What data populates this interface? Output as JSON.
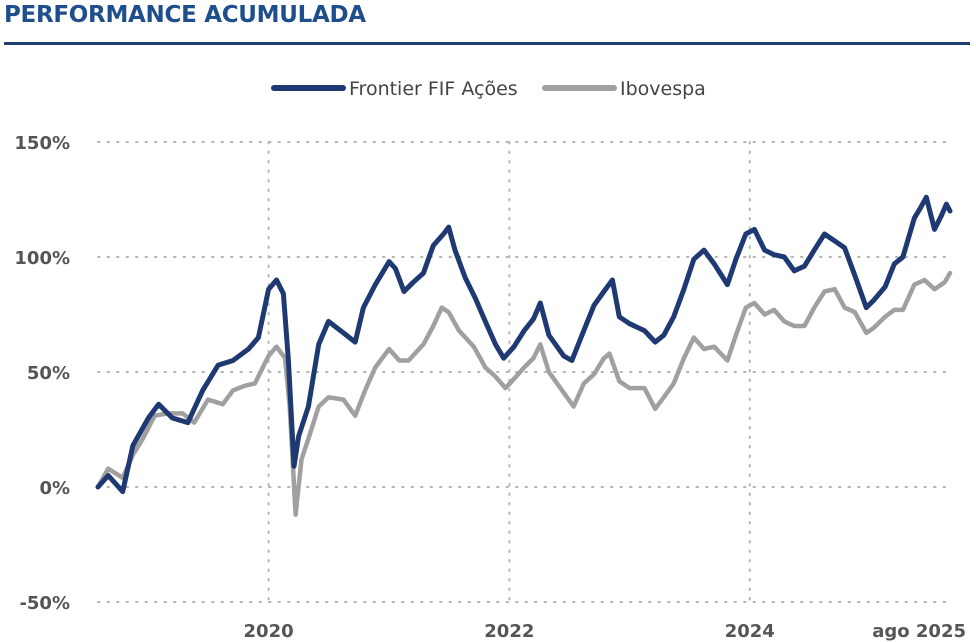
{
  "header": {
    "title": "PERFORMANCE ACUMULADA"
  },
  "colors": {
    "title": "#1f4e8c",
    "rule": "#1f3f73",
    "fund": "#1f3a73",
    "index": "#a0a0a0",
    "grid": "#b5b5b5",
    "ticks": "#555555"
  },
  "chart_data": {
    "type": "line",
    "title": "",
    "xlabel": "",
    "ylabel": "",
    "y_unit": "%",
    "ylim": [
      -50,
      150
    ],
    "xlim": [
      "2018-08-01",
      "2025-08-31"
    ],
    "legend": {
      "placement": "top-center"
    },
    "grid": {
      "horizontal": "dotted",
      "vertical": "dotted"
    },
    "y_ticks": [
      -50,
      0,
      50,
      100,
      150
    ],
    "y_tick_labels": [
      "-50%",
      "0%",
      "50%",
      "100%",
      "150%"
    ],
    "x_ticks": [
      "2020-01-01",
      "2022-01-01",
      "2024-01-01",
      "2025-08-31"
    ],
    "x_tick_labels": [
      "2020",
      "2022",
      "2024",
      "ago 2025"
    ],
    "series": [
      {
        "name": "Frontier FIF Ações",
        "color": "#1f3a73",
        "points": [
          [
            "2018-08-01",
            0
          ],
          [
            "2018-09-01",
            5
          ],
          [
            "2018-10-15",
            -2
          ],
          [
            "2018-11-15",
            18
          ],
          [
            "2019-01-01",
            30
          ],
          [
            "2019-02-01",
            36
          ],
          [
            "2019-03-15",
            30
          ],
          [
            "2019-05-01",
            28
          ],
          [
            "2019-06-15",
            42
          ],
          [
            "2019-08-01",
            53
          ],
          [
            "2019-09-15",
            55
          ],
          [
            "2019-11-01",
            60
          ],
          [
            "2019-12-01",
            65
          ],
          [
            "2020-01-01",
            86
          ],
          [
            "2020-01-25",
            90
          ],
          [
            "2020-02-15",
            84
          ],
          [
            "2020-03-01",
            55
          ],
          [
            "2020-03-18",
            9
          ],
          [
            "2020-04-01",
            22
          ],
          [
            "2020-05-01",
            35
          ],
          [
            "2020-06-01",
            62
          ],
          [
            "2020-07-01",
            72
          ],
          [
            "2020-08-15",
            67
          ],
          [
            "2020-09-20",
            63
          ],
          [
            "2020-10-15",
            78
          ],
          [
            "2020-11-20",
            88
          ],
          [
            "2021-01-01",
            98
          ],
          [
            "2021-01-20",
            95
          ],
          [
            "2021-02-15",
            85
          ],
          [
            "2021-03-15",
            89
          ],
          [
            "2021-04-15",
            93
          ],
          [
            "2021-05-15",
            105
          ],
          [
            "2021-06-15",
            110
          ],
          [
            "2021-07-01",
            113
          ],
          [
            "2021-07-20",
            103
          ],
          [
            "2021-08-20",
            91
          ],
          [
            "2021-09-20",
            82
          ],
          [
            "2021-10-20",
            72
          ],
          [
            "2021-11-20",
            62
          ],
          [
            "2021-12-15",
            56
          ],
          [
            "2022-01-15",
            61
          ],
          [
            "2022-02-15",
            68
          ],
          [
            "2022-03-15",
            73
          ],
          [
            "2022-04-05",
            80
          ],
          [
            "2022-05-01",
            66
          ],
          [
            "2022-06-15",
            57
          ],
          [
            "2022-07-10",
            55
          ],
          [
            "2022-08-15",
            68
          ],
          [
            "2022-09-15",
            79
          ],
          [
            "2022-10-15",
            85
          ],
          [
            "2022-11-10",
            90
          ],
          [
            "2022-12-01",
            74
          ],
          [
            "2023-01-01",
            71
          ],
          [
            "2023-02-15",
            68
          ],
          [
            "2023-03-20",
            63
          ],
          [
            "2023-04-15",
            66
          ],
          [
            "2023-05-15",
            74
          ],
          [
            "2023-06-15",
            86
          ],
          [
            "2023-07-15",
            99
          ],
          [
            "2023-08-15",
            103
          ],
          [
            "2023-09-15",
            97
          ],
          [
            "2023-10-25",
            88
          ],
          [
            "2023-11-20",
            99
          ],
          [
            "2023-12-20",
            110
          ],
          [
            "2024-01-15",
            112
          ],
          [
            "2024-02-15",
            103
          ],
          [
            "2024-03-15",
            101
          ],
          [
            "2024-04-15",
            100
          ],
          [
            "2024-05-15",
            94
          ],
          [
            "2024-06-15",
            96
          ],
          [
            "2024-07-15",
            103
          ],
          [
            "2024-08-15",
            110
          ],
          [
            "2024-09-15",
            107
          ],
          [
            "2024-10-15",
            104
          ],
          [
            "2024-11-15",
            92
          ],
          [
            "2024-12-20",
            78
          ],
          [
            "2025-01-10",
            81
          ],
          [
            "2025-02-15",
            87
          ],
          [
            "2025-03-15",
            97
          ],
          [
            "2025-04-10",
            100
          ],
          [
            "2025-05-15",
            117
          ],
          [
            "2025-06-01",
            121
          ],
          [
            "2025-06-20",
            126
          ],
          [
            "2025-07-15",
            112
          ],
          [
            "2025-08-05",
            118
          ],
          [
            "2025-08-20",
            123
          ],
          [
            "2025-08-31",
            120
          ]
        ]
      },
      {
        "name": "Ibovespa",
        "color": "#a0a0a0",
        "points": [
          [
            "2018-08-01",
            0
          ],
          [
            "2018-09-01",
            8
          ],
          [
            "2018-10-15",
            4
          ],
          [
            "2018-11-15",
            14
          ],
          [
            "2018-12-15",
            21
          ],
          [
            "2019-01-20",
            31
          ],
          [
            "2019-03-01",
            32
          ],
          [
            "2019-04-15",
            32
          ],
          [
            "2019-05-20",
            28
          ],
          [
            "2019-07-01",
            38
          ],
          [
            "2019-08-15",
            36
          ],
          [
            "2019-09-15",
            42
          ],
          [
            "2019-10-20",
            44
          ],
          [
            "2019-11-20",
            45
          ],
          [
            "2020-01-01",
            57
          ],
          [
            "2020-01-25",
            61
          ],
          [
            "2020-02-20",
            56
          ],
          [
            "2020-03-05",
            35
          ],
          [
            "2020-03-23",
            -12
          ],
          [
            "2020-04-10",
            12
          ],
          [
            "2020-05-01",
            21
          ],
          [
            "2020-06-01",
            35
          ],
          [
            "2020-07-01",
            39
          ],
          [
            "2020-08-15",
            38
          ],
          [
            "2020-09-20",
            31
          ],
          [
            "2020-10-20",
            42
          ],
          [
            "2020-11-20",
            52
          ],
          [
            "2021-01-01",
            60
          ],
          [
            "2021-02-01",
            55
          ],
          [
            "2021-03-01",
            55
          ],
          [
            "2021-04-15",
            62
          ],
          [
            "2021-05-15",
            70
          ],
          [
            "2021-06-10",
            78
          ],
          [
            "2021-07-01",
            76
          ],
          [
            "2021-08-01",
            68
          ],
          [
            "2021-09-15",
            61
          ],
          [
            "2021-10-20",
            52
          ],
          [
            "2021-11-20",
            48
          ],
          [
            "2021-12-20",
            43
          ],
          [
            "2022-01-15",
            47
          ],
          [
            "2022-02-15",
            52
          ],
          [
            "2022-03-15",
            56
          ],
          [
            "2022-04-05",
            62
          ],
          [
            "2022-05-01",
            50
          ],
          [
            "2022-06-15",
            41
          ],
          [
            "2022-07-15",
            35
          ],
          [
            "2022-08-15",
            45
          ],
          [
            "2022-09-15",
            49
          ],
          [
            "2022-10-15",
            56
          ],
          [
            "2022-11-01",
            58
          ],
          [
            "2022-12-01",
            46
          ],
          [
            "2023-01-01",
            43
          ],
          [
            "2023-02-15",
            43
          ],
          [
            "2023-03-20",
            34
          ],
          [
            "2023-04-15",
            39
          ],
          [
            "2023-05-15",
            45
          ],
          [
            "2023-06-15",
            56
          ],
          [
            "2023-07-15",
            65
          ],
          [
            "2023-08-15",
            60
          ],
          [
            "2023-09-15",
            61
          ],
          [
            "2023-10-25",
            55
          ],
          [
            "2023-11-20",
            66
          ],
          [
            "2023-12-20",
            78
          ],
          [
            "2024-01-15",
            80
          ],
          [
            "2024-02-15",
            75
          ],
          [
            "2024-03-15",
            77
          ],
          [
            "2024-04-15",
            72
          ],
          [
            "2024-05-15",
            70
          ],
          [
            "2024-06-15",
            70
          ],
          [
            "2024-07-15",
            78
          ],
          [
            "2024-08-15",
            85
          ],
          [
            "2024-09-15",
            86
          ],
          [
            "2024-10-15",
            78
          ],
          [
            "2024-11-15",
            76
          ],
          [
            "2024-12-20",
            67
          ],
          [
            "2025-01-10",
            69
          ],
          [
            "2025-02-15",
            74
          ],
          [
            "2025-03-15",
            77
          ],
          [
            "2025-04-10",
            77
          ],
          [
            "2025-05-15",
            88
          ],
          [
            "2025-06-15",
            90
          ],
          [
            "2025-07-15",
            86
          ],
          [
            "2025-08-15",
            89
          ],
          [
            "2025-08-31",
            93
          ]
        ]
      }
    ]
  }
}
